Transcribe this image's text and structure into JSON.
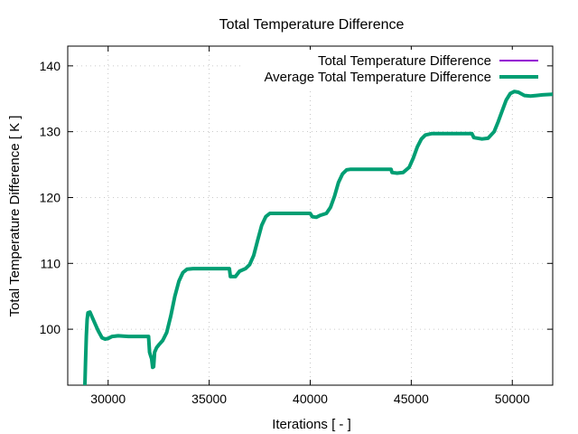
{
  "chart_data": {
    "type": "line",
    "title": "Total Temperature Difference",
    "xlabel": "Iterations [ - ]",
    "ylabel": "Total Temperature Difference [ K ]",
    "xlim": [
      28000,
      52000
    ],
    "ylim": [
      91.5,
      143
    ],
    "xticks": [
      30000,
      35000,
      40000,
      45000,
      50000
    ],
    "yticks": [
      100,
      110,
      120,
      130,
      140
    ],
    "grid": true,
    "legend_position": "top-right",
    "series": [
      {
        "name": "Total Temperature Difference",
        "color": "#9400d3",
        "points": [
          [
            28850,
            91.5
          ],
          [
            28880,
            95
          ],
          [
            28920,
            99
          ],
          [
            28960,
            101.5
          ],
          [
            29000,
            102.5
          ],
          [
            29100,
            102.6
          ],
          [
            29300,
            101.2
          ],
          [
            29500,
            99.8
          ],
          [
            29700,
            98.7
          ],
          [
            29850,
            98.5
          ],
          [
            30000,
            98.6
          ],
          [
            30200,
            98.9
          ],
          [
            30500,
            99.0
          ],
          [
            31000,
            98.9
          ],
          [
            31500,
            98.9
          ],
          [
            32000,
            98.9
          ],
          [
            32050,
            96.5
          ],
          [
            32100,
            96.0
          ],
          [
            32150,
            95.5
          ],
          [
            32200,
            94.2
          ],
          [
            32250,
            94.3
          ],
          [
            32300,
            96.5
          ],
          [
            32400,
            97.2
          ],
          [
            32500,
            97.6
          ],
          [
            32700,
            98.3
          ],
          [
            32900,
            99.5
          ],
          [
            33100,
            102.0
          ],
          [
            33300,
            105.0
          ],
          [
            33500,
            107.3
          ],
          [
            33700,
            108.6
          ],
          [
            33900,
            109.1
          ],
          [
            34200,
            109.2
          ],
          [
            35000,
            109.2
          ],
          [
            36000,
            109.2
          ],
          [
            36050,
            108.0
          ],
          [
            36300,
            108.0
          ],
          [
            36500,
            108.8
          ],
          [
            36800,
            109.2
          ],
          [
            37000,
            109.8
          ],
          [
            37200,
            111.2
          ],
          [
            37400,
            113.5
          ],
          [
            37600,
            115.8
          ],
          [
            37800,
            117.1
          ],
          [
            38000,
            117.6
          ],
          [
            39000,
            117.6
          ],
          [
            40000,
            117.6
          ],
          [
            40100,
            117.1
          ],
          [
            40300,
            117.0
          ],
          [
            40500,
            117.3
          ],
          [
            40800,
            117.6
          ],
          [
            41000,
            118.5
          ],
          [
            41200,
            120.2
          ],
          [
            41400,
            122.3
          ],
          [
            41600,
            123.6
          ],
          [
            41800,
            124.2
          ],
          [
            42000,
            124.3
          ],
          [
            43000,
            124.3
          ],
          [
            44000,
            124.3
          ],
          [
            44050,
            123.8
          ],
          [
            44300,
            123.7
          ],
          [
            44600,
            123.8
          ],
          [
            44900,
            124.6
          ],
          [
            45100,
            126.0
          ],
          [
            45300,
            127.7
          ],
          [
            45500,
            128.9
          ],
          [
            45700,
            129.5
          ],
          [
            46000,
            129.7
          ],
          [
            47000,
            129.7
          ],
          [
            48000,
            129.7
          ],
          [
            48100,
            129.1
          ],
          [
            48500,
            128.9
          ],
          [
            48800,
            129.0
          ],
          [
            49100,
            130.0
          ],
          [
            49300,
            131.5
          ],
          [
            49500,
            133.2
          ],
          [
            49700,
            134.8
          ],
          [
            49900,
            135.8
          ],
          [
            50100,
            136.1
          ],
          [
            50300,
            136.0
          ],
          [
            50600,
            135.5
          ],
          [
            50900,
            135.4
          ],
          [
            51200,
            135.5
          ],
          [
            51500,
            135.6
          ],
          [
            52000,
            135.7
          ]
        ]
      },
      {
        "name": "Average Total Temperature Difference",
        "color": "#009e73",
        "points": [
          [
            28850,
            91.5
          ],
          [
            28880,
            95
          ],
          [
            28920,
            99
          ],
          [
            28960,
            101.5
          ],
          [
            29000,
            102.5
          ],
          [
            29100,
            102.6
          ],
          [
            29300,
            101.2
          ],
          [
            29500,
            99.8
          ],
          [
            29700,
            98.7
          ],
          [
            29850,
            98.5
          ],
          [
            30000,
            98.6
          ],
          [
            30200,
            98.9
          ],
          [
            30500,
            99.0
          ],
          [
            31000,
            98.9
          ],
          [
            31500,
            98.9
          ],
          [
            32000,
            98.9
          ],
          [
            32050,
            96.5
          ],
          [
            32100,
            96.0
          ],
          [
            32150,
            95.5
          ],
          [
            32200,
            94.2
          ],
          [
            32250,
            94.3
          ],
          [
            32300,
            96.5
          ],
          [
            32400,
            97.2
          ],
          [
            32500,
            97.6
          ],
          [
            32700,
            98.3
          ],
          [
            32900,
            99.5
          ],
          [
            33100,
            102.0
          ],
          [
            33300,
            105.0
          ],
          [
            33500,
            107.3
          ],
          [
            33700,
            108.6
          ],
          [
            33900,
            109.1
          ],
          [
            34200,
            109.2
          ],
          [
            35000,
            109.2
          ],
          [
            36000,
            109.2
          ],
          [
            36050,
            108.0
          ],
          [
            36300,
            108.0
          ],
          [
            36500,
            108.8
          ],
          [
            36800,
            109.2
          ],
          [
            37000,
            109.8
          ],
          [
            37200,
            111.2
          ],
          [
            37400,
            113.5
          ],
          [
            37600,
            115.8
          ],
          [
            37800,
            117.1
          ],
          [
            38000,
            117.6
          ],
          [
            39000,
            117.6
          ],
          [
            40000,
            117.6
          ],
          [
            40100,
            117.1
          ],
          [
            40300,
            117.0
          ],
          [
            40500,
            117.3
          ],
          [
            40800,
            117.6
          ],
          [
            41000,
            118.5
          ],
          [
            41200,
            120.2
          ],
          [
            41400,
            122.3
          ],
          [
            41600,
            123.6
          ],
          [
            41800,
            124.2
          ],
          [
            42000,
            124.3
          ],
          [
            43000,
            124.3
          ],
          [
            44000,
            124.3
          ],
          [
            44050,
            123.8
          ],
          [
            44300,
            123.7
          ],
          [
            44600,
            123.8
          ],
          [
            44900,
            124.6
          ],
          [
            45100,
            126.0
          ],
          [
            45300,
            127.7
          ],
          [
            45500,
            128.9
          ],
          [
            45700,
            129.5
          ],
          [
            46000,
            129.7
          ],
          [
            47000,
            129.7
          ],
          [
            48000,
            129.7
          ],
          [
            48100,
            129.1
          ],
          [
            48500,
            128.9
          ],
          [
            48800,
            129.0
          ],
          [
            49100,
            130.0
          ],
          [
            49300,
            131.5
          ],
          [
            49500,
            133.2
          ],
          [
            49700,
            134.8
          ],
          [
            49900,
            135.8
          ],
          [
            50100,
            136.1
          ],
          [
            50300,
            136.0
          ],
          [
            50600,
            135.5
          ],
          [
            50900,
            135.4
          ],
          [
            51200,
            135.5
          ],
          [
            51500,
            135.6
          ],
          [
            52000,
            135.7
          ]
        ]
      }
    ]
  }
}
